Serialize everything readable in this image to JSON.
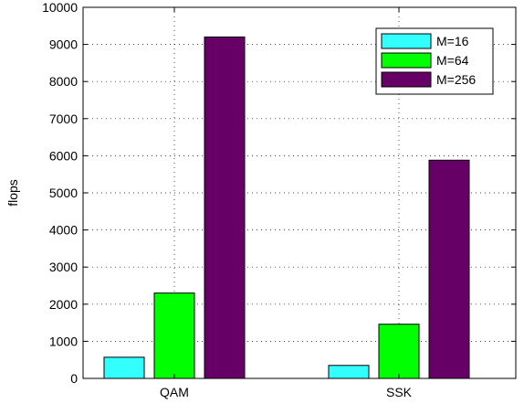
{
  "chart_data": {
    "type": "bar",
    "title": "",
    "xlabel": "",
    "ylabel": "flops",
    "categories": [
      "QAM",
      "SSK"
    ],
    "series": [
      {
        "name": "M=16",
        "color": "#33ffff",
        "values": [
          570,
          350
        ]
      },
      {
        "name": "M=64",
        "color": "#00ff00",
        "values": [
          2300,
          1460
        ]
      },
      {
        "name": "M=256",
        "color": "#660066",
        "values": [
          9200,
          5880
        ]
      }
    ],
    "ylim": [
      0,
      10000
    ],
    "yticks": [
      0,
      1000,
      2000,
      3000,
      4000,
      5000,
      6000,
      7000,
      8000,
      9000,
      10000
    ],
    "grid": true,
    "legend_position": "top-right"
  }
}
